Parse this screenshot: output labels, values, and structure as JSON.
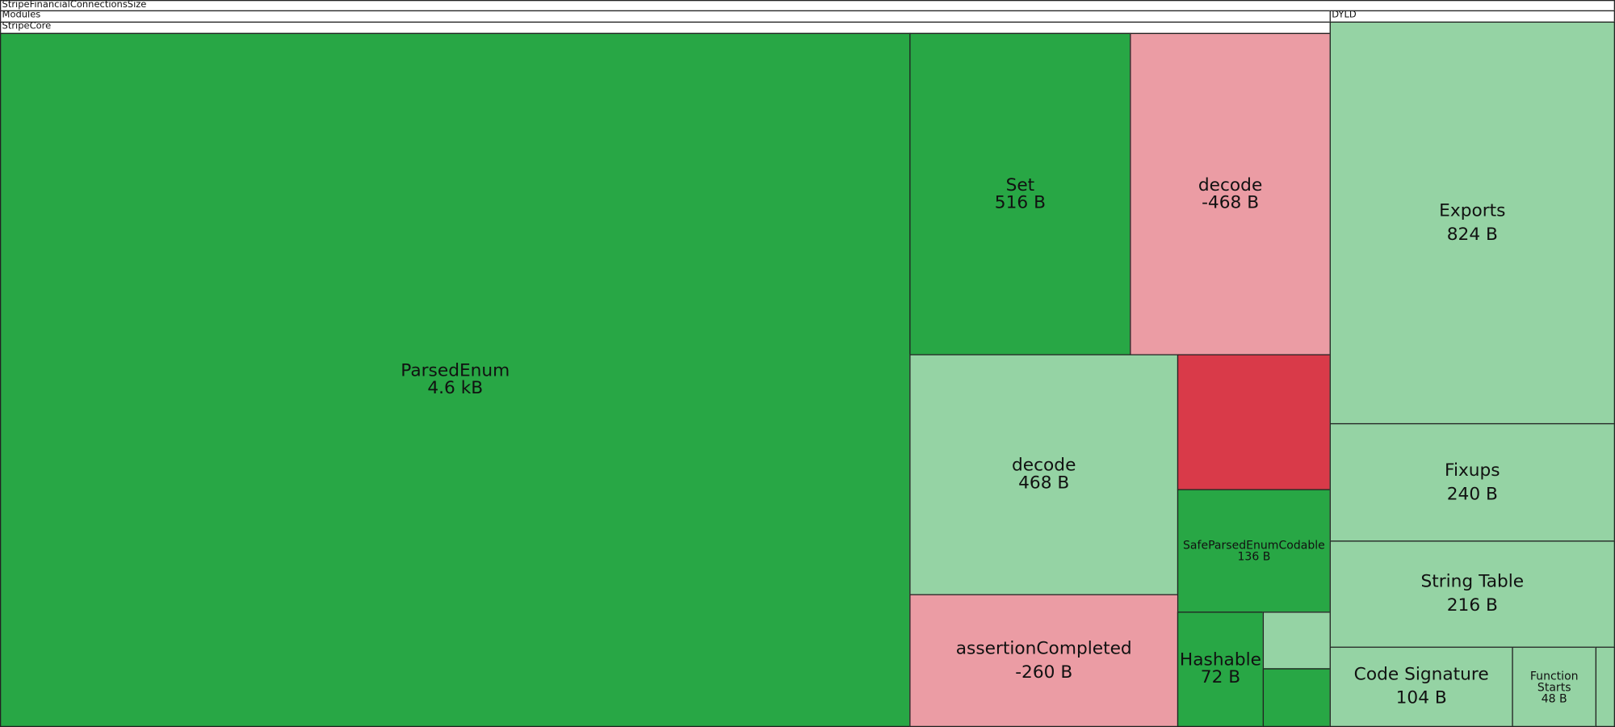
{
  "header": {
    "root": "StripeFinancialConnectionsSize",
    "modules": "Modules",
    "dyld": "DYLD",
    "core": "StripeCore"
  },
  "nodes": [
    {
      "label": "ParsedEnum",
      "size": "4.6 kB"
    },
    {
      "label": "Set",
      "size": "516 B"
    },
    {
      "label": "decode",
      "size": "-468 B"
    },
    {
      "label": "decode",
      "size": "468 B"
    },
    {
      "label": "SafeParsedEnumCodable",
      "size": "136 B"
    },
    {
      "label": "assertionCompleted",
      "size": "-260 B"
    },
    {
      "label": "Hashable",
      "size": "72 B"
    },
    {
      "label": "Exports",
      "size": "824 B"
    },
    {
      "label": "Fixups",
      "size": "240 B"
    },
    {
      "label": "String Table",
      "size": "216 B"
    },
    {
      "label": "Code Signature",
      "size": "104 B"
    },
    {
      "label": "Function Starts",
      "size": "48 B"
    }
  ]
}
